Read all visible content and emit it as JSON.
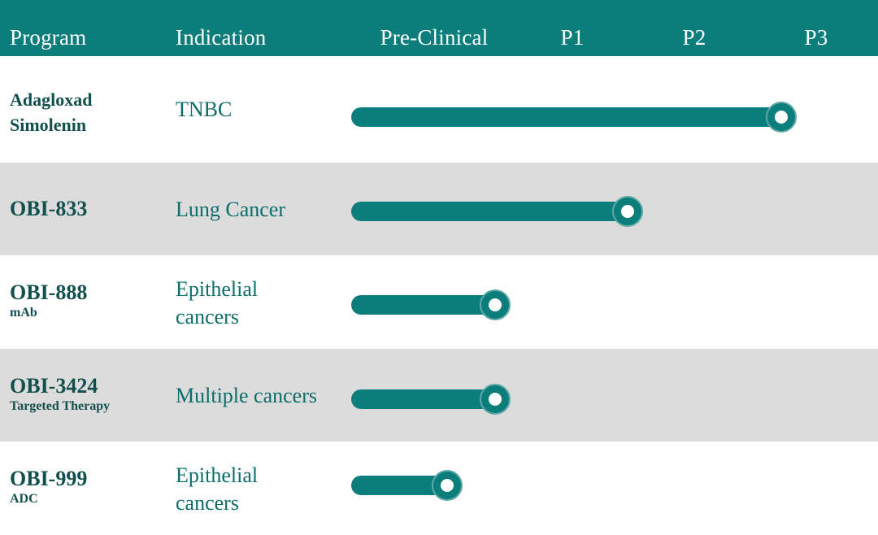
{
  "header": {
    "program_label": "Program",
    "indication_label": "Indication",
    "stages": [
      "Pre-Clinical",
      "P1",
      "P2",
      "P3"
    ]
  },
  "colors": {
    "accent": "#0b7d7b",
    "row_shade": "#dcdcdc",
    "program_text": "#134f4c",
    "indication_text": "#0b6d6a"
  },
  "chart_data": {
    "type": "bar",
    "orientation": "horizontal",
    "xlabel": "",
    "ylabel": "",
    "categories": [
      "Pre-Clinical",
      "P1",
      "P2",
      "P3"
    ],
    "stage_scale": "progress measured in stage units: 0 = start of Pre-Clinical, 3 = P3",
    "programs": [
      {
        "name_lines": [
          "Adagloxad",
          "Simolenin"
        ],
        "subtitle": "",
        "indication_lines": [
          "TNBC"
        ],
        "progress": 3.0
      },
      {
        "name_lines": [
          "OBI-833"
        ],
        "subtitle": "",
        "indication_lines": [
          "Lung Cancer"
        ],
        "progress": 1.84
      },
      {
        "name_lines": [
          "OBI-888"
        ],
        "subtitle": "mAb",
        "indication_lines": [
          "Epithelial",
          "cancers"
        ],
        "progress": 0.84
      },
      {
        "name_lines": [
          "OBI-3424"
        ],
        "subtitle": "Targeted Therapy",
        "indication_lines": [
          "Multiple cancers"
        ],
        "progress": 0.84
      },
      {
        "name_lines": [
          "OBI-999"
        ],
        "subtitle": "ADC",
        "indication_lines": [
          "Epithelial",
          "cancers"
        ],
        "progress": 0.48
      }
    ]
  }
}
